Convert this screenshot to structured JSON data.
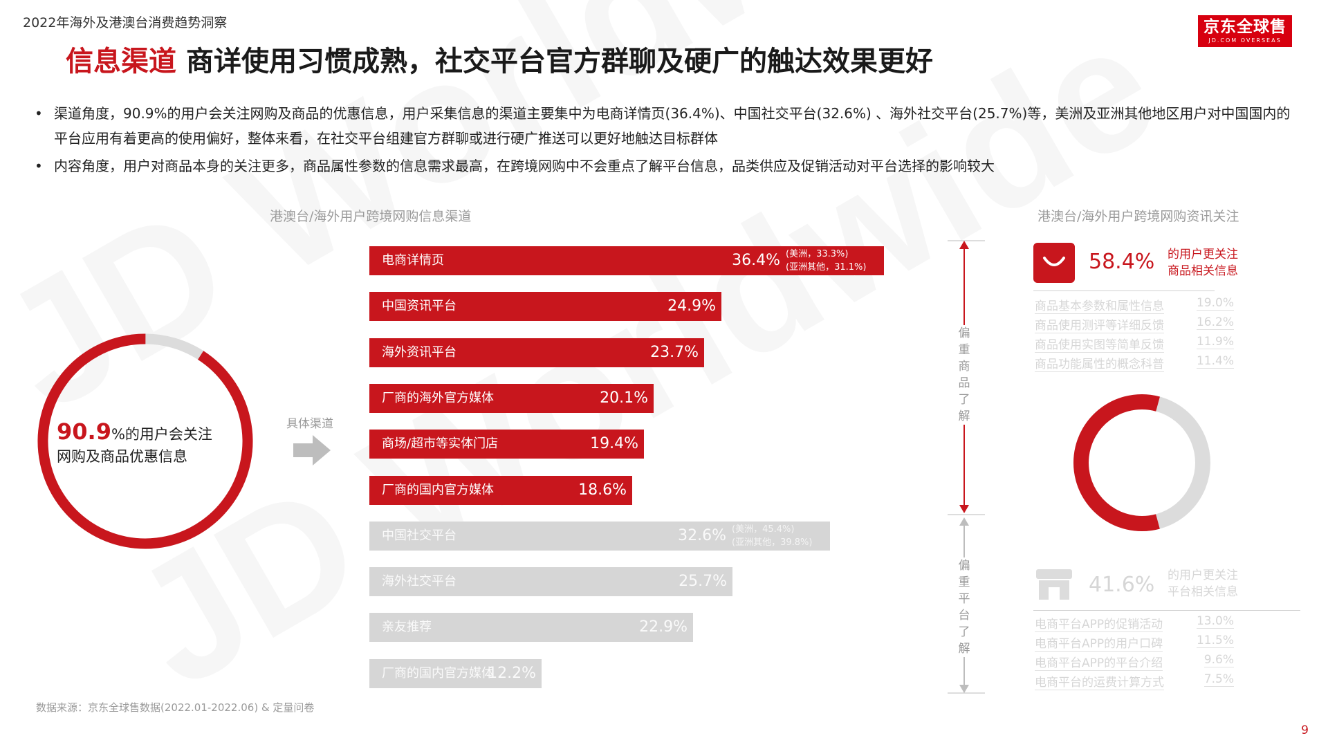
{
  "header": {
    "report_label": "2022年海外及港澳台消费趋势洞察",
    "logo_main": "京东全球售",
    "logo_sub": "JD.COM OVERSEAS"
  },
  "title": {
    "highlight": "信息渠道",
    "main": "商详使用习惯成熟，社交平台官方群聊及硬广的触达效果更好"
  },
  "bullets": [
    "渠道角度，90.9%的用户会关注网购及商品的优惠信息，用户采集信息的渠道主要集中为电商详情页(36.4%)、中国社交平台(32.6%) 、海外社交平台(25.7%)等，美洲及亚洲其他地区用户对中国国内的平台应用有着更高的使用偏好，整体来看，在社交平台组建官方群聊或进行硬广推送可以更好地触达目标群体",
    "内容角度，用户对商品本身的关注更多，商品属性参数的信息需求最高，在跨境网购中不会重点了解平台信息，品类供应及促销活动对平台选择的影响较大"
  ],
  "bullet_symbol": "•",
  "donut_left": {
    "big": "90.9",
    "after_big": "%的用户会关注",
    "line2": "网购及商品优惠信息",
    "arrow_label": "具体渠道"
  },
  "center_chart_title": "港澳台/海外用户跨境网购信息渠道",
  "vertical_labels": {
    "product": "偏重商品了解",
    "platform": "偏重平台了解"
  },
  "right_panel": {
    "title": "港澳台/海外用户跨境网购资讯关注",
    "product": {
      "pct": "58.4%",
      "desc1": "的用户更关注",
      "desc2": "商品相关信息"
    },
    "platform": {
      "pct": "41.6%",
      "desc1": "的用户更关注",
      "desc2": "平台相关信息"
    }
  },
  "source": "数据来源：京东全球售数据(2022.01-2022.06) & 定量问卷",
  "page_number": "9",
  "watermark": "JD Worldwide",
  "colors": {
    "accent": "#c8161d",
    "light_bar": "#d6d6d6",
    "donut_rest": "#dcdcdc"
  },
  "icons": {
    "shopping_bag": "shopping-bag-icon",
    "store": "store-icon",
    "arrow": "right-arrow-icon"
  },
  "chart_data": [
    {
      "type": "pie",
      "variant": "donut",
      "values": [
        90.9,
        9.1
      ],
      "colors": [
        "#c8161d",
        "#dcdcdc"
      ]
    },
    {
      "type": "bar",
      "orientation": "horizontal",
      "title": "港澳台/海外用户跨境网购信息渠道",
      "unit": "%",
      "xlim": [
        0,
        36.4
      ],
      "categories": [
        "电商详情页",
        "中国资讯平台",
        "海外资讯平台",
        "厂商的海外官方媒体",
        "商场/超市等实体门店",
        "厂商的国内官方媒体",
        "中国社交平台",
        "海外社交平台",
        "亲友推荐",
        "厂商的国内官方媒体"
      ],
      "values": [
        36.4,
        24.9,
        23.7,
        20.1,
        19.4,
        18.6,
        32.6,
        25.7,
        22.9,
        12.2
      ],
      "labels": [
        "36.4%",
        "24.9%",
        "23.7%",
        "20.1%",
        "19.4%",
        "18.6%",
        "32.6%",
        "25.7%",
        "22.9%",
        "12.2%"
      ],
      "emphasis": [
        true,
        true,
        true,
        true,
        true,
        true,
        false,
        false,
        false,
        false
      ],
      "notes": [
        [
          "(美洲，33.3%)",
          "(亚洲其他，31.1%)"
        ],
        [],
        [],
        [],
        [],
        [],
        [
          "(美洲，45.4%)",
          "(亚洲其他，39.8%)"
        ],
        [],
        [],
        []
      ]
    },
    {
      "type": "pie",
      "variant": "donut",
      "values": [
        58.4,
        41.6
      ],
      "labels": [
        "商品相关信息",
        "平台相关信息"
      ],
      "colors": [
        "#c8161d",
        "#dcdcdc"
      ]
    },
    {
      "type": "table",
      "title": "商品相关信息",
      "rows": [
        {
          "label": "商品基本参数和属性信息",
          "value": "19.0%"
        },
        {
          "label": "商品使用测评等详细反馈",
          "value": "16.2%"
        },
        {
          "label": "商品使用实图等简单反馈",
          "value": "11.9%"
        },
        {
          "label": "商品功能属性的概念科普",
          "value": "11.4%"
        }
      ]
    },
    {
      "type": "table",
      "title": "平台相关信息",
      "rows": [
        {
          "label": "电商平台APP的促销活动",
          "value": "13.0%"
        },
        {
          "label": "电商平台APP的用户口碑",
          "value": "11.5%"
        },
        {
          "label": "电商平台APP的平台介绍",
          "value": "9.6%"
        },
        {
          "label": "电商平台的运费计算方式",
          "value": "7.5%"
        }
      ]
    }
  ]
}
